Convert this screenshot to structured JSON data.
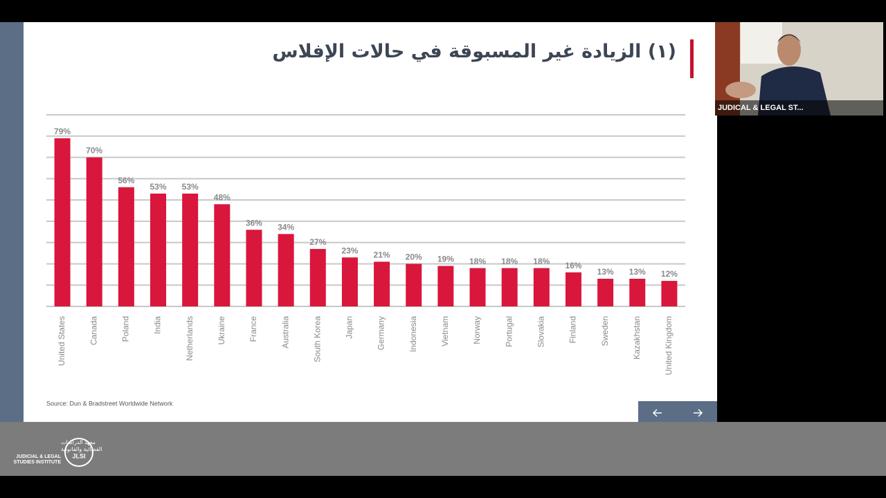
{
  "chart_data": {
    "type": "bar",
    "title": "(١) الزيادة غير المسبوقة في حالات الإفلاس",
    "source": "Source: Dun & Bradstreet Worldwide Network",
    "categories": [
      "United States",
      "Canada",
      "Poland",
      "India",
      "Netherlands",
      "Ukraine",
      "France",
      "Australia",
      "South Korea",
      "Japan",
      "Germany",
      "Indonesia",
      "Vietnam",
      "Norway",
      "Portugal",
      "Slovakia",
      "Finland",
      "Sweden",
      "Kazakhstan",
      "United Kingdom"
    ],
    "values": [
      79,
      70,
      56,
      53,
      53,
      48,
      36,
      34,
      27,
      23,
      21,
      20,
      19,
      18,
      18,
      18,
      16,
      13,
      13,
      12
    ],
    "value_labels": [
      "79%",
      "70%",
      "56%",
      "53%",
      "53%",
      "48%",
      "36%",
      "34%",
      "27%",
      "23%",
      "21%",
      "20%",
      "19%",
      "18%",
      "18%",
      "18%",
      "16%",
      "13%",
      "13%",
      "12%"
    ],
    "color": "#d9163c",
    "ylim": [
      0,
      90
    ],
    "yticks": [
      0,
      10,
      20,
      30,
      40,
      50,
      60,
      70,
      80,
      90
    ],
    "grid": true
  },
  "video": {
    "participant": "JUDICAL & LEGAL ST..."
  },
  "footer": {
    "logo_arabic_1": "معهد الدراسات",
    "logo_arabic_2": "القضائية والقانونية",
    "logo_english_1": "JUDICIAL & LEGAL",
    "logo_english_2": "STUDIES INSTITUTE",
    "logo_mark": "JLSI"
  }
}
